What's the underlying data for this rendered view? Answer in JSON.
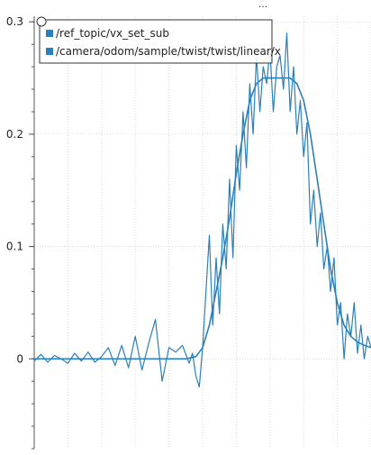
{
  "header": {
    "overflow_label": "..."
  },
  "chart_data": {
    "type": "line",
    "title": "",
    "xlabel": "",
    "ylabel": "",
    "ylim": [
      -0.08,
      0.305
    ],
    "xlim": [
      0,
      100
    ],
    "grid": true,
    "yticks": [
      0,
      0.1,
      0.2,
      0.3
    ],
    "ytick_labels": [
      "0",
      "0.1",
      "0.2",
      "0.3"
    ],
    "legend": {
      "placement": "top-left",
      "entries": [
        "/ref_topic/vx_set_sub",
        "/camera/odom/sample/twist/twist/linear/x"
      ]
    },
    "colors": {
      "series_1": "#2a80b9",
      "series_2": "#2a80b9",
      "grid": "#d0d0d0",
      "axis": "#555555"
    },
    "series": [
      {
        "name": "/ref_topic/vx_set_sub",
        "x": [
          0,
          10,
          20,
          30,
          40,
          45,
          48,
          50,
          52,
          54,
          56,
          58,
          60,
          62,
          64,
          66,
          68,
          70,
          72,
          74,
          76,
          78,
          80,
          82,
          84,
          86,
          88,
          90,
          92,
          94,
          96,
          98,
          100
        ],
        "y": [
          0,
          0,
          0,
          0,
          0,
          0,
          0.002,
          0.01,
          0.03,
          0.06,
          0.09,
          0.125,
          0.165,
          0.2,
          0.23,
          0.245,
          0.25,
          0.25,
          0.25,
          0.25,
          0.25,
          0.245,
          0.23,
          0.2,
          0.16,
          0.12,
          0.08,
          0.05,
          0.03,
          0.02,
          0.015,
          0.012,
          0.01
        ]
      },
      {
        "name": "/camera/odom/sample/twist/twist/linear/x",
        "x": [
          0,
          2,
          4,
          6,
          8,
          10,
          12,
          14,
          16,
          18,
          20,
          22,
          24,
          26,
          28,
          30,
          32,
          34,
          36,
          38,
          40,
          42,
          44,
          46,
          47,
          48,
          49,
          50,
          51,
          52,
          53,
          54,
          55,
          56,
          57,
          58,
          59,
          60,
          61,
          62,
          63,
          64,
          65,
          66,
          67,
          68,
          69,
          70,
          71,
          72,
          73,
          74,
          75,
          76,
          77,
          78,
          79,
          80,
          81,
          82,
          83,
          84,
          85,
          86,
          87,
          88,
          89,
          90,
          91,
          92,
          93,
          94,
          95,
          96,
          97,
          98,
          99,
          100
        ],
        "y": [
          -0.002,
          0.004,
          -0.003,
          0.003,
          0.0,
          -0.004,
          0.005,
          -0.002,
          0.006,
          -0.003,
          0.002,
          0.01,
          -0.006,
          0.012,
          -0.008,
          0.02,
          -0.01,
          0.014,
          0.035,
          -0.02,
          0.01,
          0.006,
          0.012,
          -0.004,
          0.005,
          -0.015,
          -0.025,
          0.01,
          0.06,
          0.11,
          0.03,
          0.09,
          0.04,
          0.12,
          0.08,
          0.16,
          0.09,
          0.19,
          0.15,
          0.22,
          0.17,
          0.245,
          0.2,
          0.27,
          0.22,
          0.26,
          0.245,
          0.275,
          0.22,
          0.26,
          0.27,
          0.24,
          0.29,
          0.22,
          0.26,
          0.2,
          0.23,
          0.18,
          0.21,
          0.12,
          0.15,
          0.1,
          0.13,
          0.08,
          0.1,
          0.06,
          0.09,
          0.03,
          0.05,
          0.0,
          0.04,
          0.02,
          0.05,
          0.005,
          0.03,
          0.0,
          0.02,
          0.01
        ]
      }
    ]
  }
}
